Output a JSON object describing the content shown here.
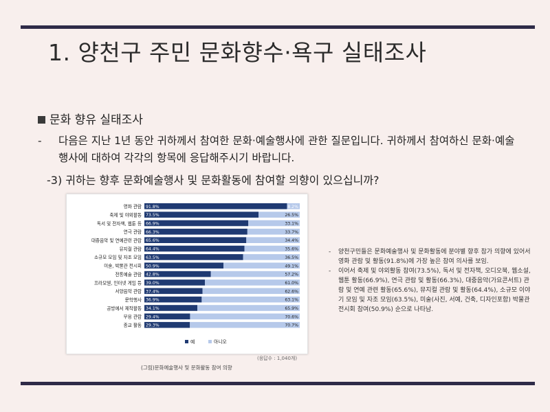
{
  "title": "1. 양천구 주민 문화향수·욕구 실태조사",
  "section_heading": "문화 향유 실태조사",
  "paragraph": {
    "bullet": "-",
    "text": "다음은 지난 1년 동안 귀하께서 참여한 문화·예술행사에 관한 질문입니다. 귀하께서 참여하신 문화·예술행사에 대하여 각각의 항목에 응답해주시기 바랍니다."
  },
  "question": "-3) 귀하는 향후 문화예술행사 및 문화활동에 참여할 의향이 있으십니까?",
  "chart_data": {
    "type": "bar",
    "orientation": "horizontal",
    "stacked": true,
    "percent_scale": true,
    "categories": [
      "영화 관람",
      "축제 및 야외활동",
      "독서 및 전자책, 웹툰 등",
      "연극 관람",
      "대중음악 및 연예관련 관람",
      "뮤지컬 관람",
      "소규모 모임 및 자조 모임",
      "미술, 박물관 전시회",
      "전통예술 관람",
      "프라모델, 인터넷 게임 등",
      "서양음악 관람",
      "문학행사",
      "공방에서 제작활동",
      "무용 관람",
      "종교 활동"
    ],
    "series": [
      {
        "name": "예",
        "color": "#1f3a72",
        "values": [
          91.8,
          73.5,
          66.9,
          66.3,
          65.6,
          64.4,
          63.5,
          50.9,
          42.8,
          39.0,
          37.4,
          36.9,
          34.1,
          29.4,
          29.3
        ],
        "labels": [
          "91.8%",
          "73.5%",
          "66.9%",
          "66.3%",
          "65.6%",
          "64.4%",
          "63.5%",
          "50.9%",
          "42.8%",
          "39.0%",
          "37.4%",
          "36.9%",
          "34.1%",
          "29.4%",
          "29.3%"
        ]
      },
      {
        "name": "아니오",
        "color": "#b6c9ea",
        "values": [
          8.2,
          26.5,
          33.1,
          33.7,
          34.4,
          35.6,
          36.5,
          49.1,
          57.2,
          61.0,
          62.6,
          63.1,
          65.9,
          70.6,
          70.7
        ],
        "labels": [
          "8.2%",
          "26.5%",
          "33.1%",
          "33.7%",
          "34.4%",
          "35.6%",
          "36.5%",
          "49.1%",
          "57.2%",
          "61.0%",
          "62.6%",
          "63.1%",
          "65.9%",
          "70.6%",
          "70.7%"
        ]
      }
    ],
    "legend_position": "bottom",
    "grid": false
  },
  "respondents": "(응답수 : 1,040개)",
  "caption": "(그림)문화예술행사 및 문화활동 참여 의향",
  "notes": [
    {
      "bullet": "-",
      "text": "양천구민들은 문화예술행사 및 문화활동에 분야별 향후 참가 의향에 있어서 영화 관람 및 활동(91.8%)에 가장 높은 참여 의사를 보임."
    },
    {
      "bullet": "-",
      "text": "이어서 축제 및 야외활동 참여(73.5%), 독서 및 전자책, 오디오북, 웹소설, 웹툰 활동(66.9%), 연극 관람 및 활동(66.3%), 대중음악(가요콘서트) 관람 및 연예 관련 활동(65.6%), 뮤지컬 관람 및 활동(64.4%), 소규모 이야기 모임 및 자조 모임(63.5%), 미술(사진, 서예, 건축, 디자인포함) 박물관 전시회 참여(50.9%) 순으로 나타남."
    }
  ]
}
